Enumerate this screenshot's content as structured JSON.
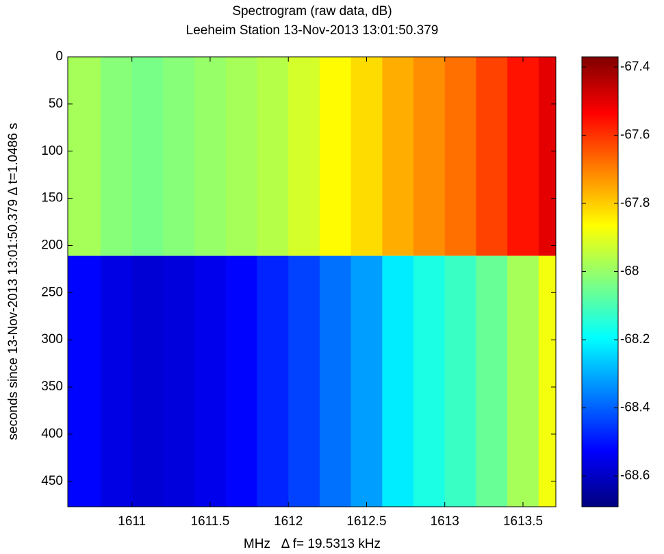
{
  "chart_data": {
    "type": "heatmap",
    "title": "Spectrogram (raw data, dB)",
    "subtitle": "Leeheim Station 13-Nov-2013 13:01:50.379",
    "x_label": "MHz   Δ f= 19.5313 kHz",
    "y_label": "seconds since 13-Nov-2013 13:01:50.379 Δ t=1.0486 s",
    "colormap": "jet",
    "xlim": [
      1610.59,
      1613.71
    ],
    "xticks": [
      1611,
      1611.5,
      1612,
      1612.5,
      1613,
      1613.5
    ],
    "ylim": [
      0,
      477
    ],
    "y_reversed": true,
    "yticks": [
      0,
      50,
      100,
      150,
      200,
      250,
      300,
      350,
      400,
      450
    ],
    "xbins": [
      1610.59,
      1610.8,
      1611.0,
      1611.2,
      1611.4,
      1611.6,
      1611.8,
      1612.0,
      1612.2,
      1612.4,
      1612.6,
      1612.8,
      1613.0,
      1613.2,
      1613.4,
      1613.6,
      1613.71
    ],
    "ybins": [
      0,
      211,
      477
    ],
    "values": [
      [
        -67.98,
        -68.02,
        -68.04,
        -68.02,
        -68.0,
        -67.98,
        -67.96,
        -67.92,
        -67.86,
        -67.82,
        -67.76,
        -67.72,
        -67.68,
        -67.62,
        -67.56,
        -67.5
      ],
      [
        -68.52,
        -68.56,
        -68.58,
        -68.57,
        -68.55,
        -68.52,
        -68.48,
        -68.44,
        -68.38,
        -68.32,
        -68.22,
        -68.16,
        -68.12,
        -68.06,
        -67.98,
        -67.88
      ]
    ],
    "clim": [
      -68.69,
      -67.37
    ],
    "cticks": [
      -67.4,
      -67.6,
      -67.8,
      -68,
      -68.2,
      -68.4,
      -68.6
    ]
  }
}
